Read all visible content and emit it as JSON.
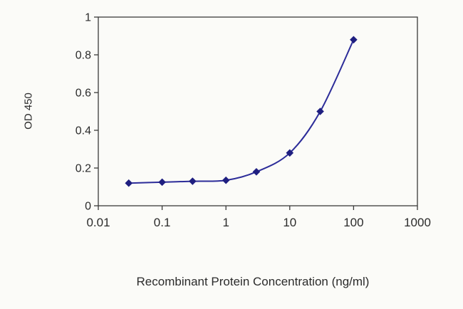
{
  "chart_data": {
    "type": "line",
    "title": "",
    "xlabel": "Recombinant Protein Concentration (ng/ml)",
    "ylabel": "OD 450",
    "x_scale": "log",
    "xlim": [
      0.01,
      1000
    ],
    "ylim": [
      0,
      1
    ],
    "x_ticks": [
      0.01,
      0.1,
      1,
      10,
      100,
      1000
    ],
    "x_tick_labels": [
      "0.01",
      "0.1",
      "1",
      "10",
      "100",
      "1000"
    ],
    "y_ticks": [
      0,
      0.2,
      0.4,
      0.6,
      0.8,
      1
    ],
    "y_tick_labels": [
      "0",
      "0.2",
      "0.4",
      "0.6",
      "0.8",
      "1"
    ],
    "grid": "off",
    "legend": "none",
    "series": [
      {
        "name": "OD 450",
        "color": "#2c2c99",
        "marker": "diamond",
        "marker_color": "#1f1f80",
        "points": [
          [
            0.03,
            0.12
          ],
          [
            0.1,
            0.125
          ],
          [
            0.3,
            0.13
          ],
          [
            1,
            0.135
          ],
          [
            3,
            0.18
          ],
          [
            10,
            0.28
          ],
          [
            30,
            0.5
          ],
          [
            100,
            0.88
          ]
        ]
      }
    ],
    "frame_color": "#3a3a3a",
    "text_color": "#2b2b2b"
  }
}
